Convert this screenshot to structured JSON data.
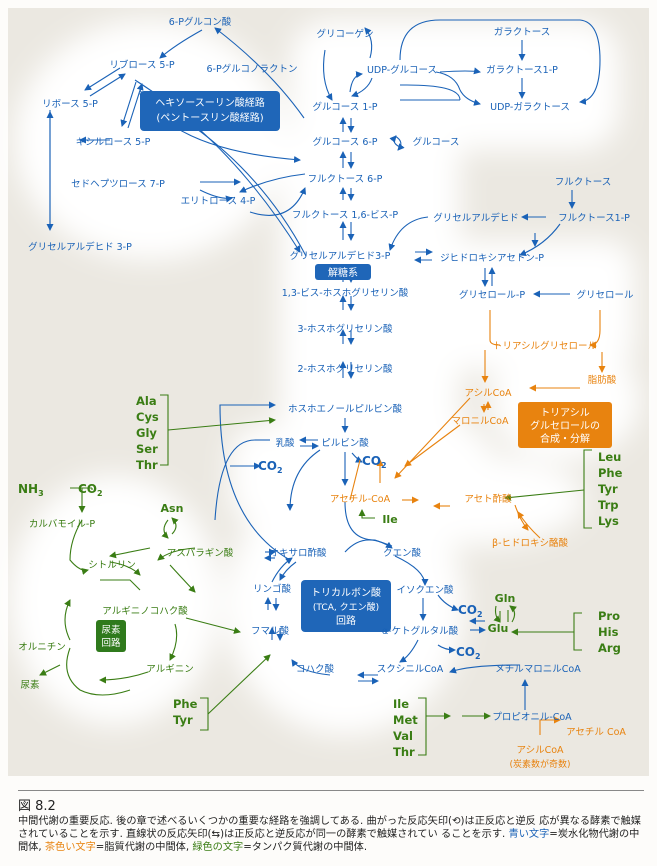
{
  "colors": {
    "carb": "#1a62b7",
    "lipid": "#e8830f",
    "protein": "#3a7d14",
    "ppp_box": "#1f66b8",
    "lipid_box": "#e8830f",
    "urea_box": "#2f7a1c",
    "background": "#eeebe4"
  },
  "carb": {
    "g6p_acid": "6-Pグルコン酸",
    "gluconolactone": "6-Pグルコノラクトン",
    "ribulose": "リブロース 5-P",
    "ribose": "リボース 5-P",
    "xylulose": "キシルロース 5-P",
    "sedoheptulose": "セドヘプツロース 7-P",
    "erythrose": "エリトロース 4-P",
    "gap3p_left": "グリセルアルデヒド 3-P",
    "glycogen": "グリコーゲン",
    "udp_glucose": "UDP-グルコース",
    "galactose": "ガラクトース",
    "galactose1p": "ガラクトース1-P",
    "udp_galactose": "UDP-ガラクトース",
    "glucose1p": "グルコース 1-P",
    "glucose6p": "グルコース 6-P",
    "glucose": "グルコース",
    "fructose6p": "フルクトース 6-P",
    "fructose16bp": "フルクトース 1,6-ビス-P",
    "fructose": "フルクトース",
    "fructose1p": "フルクトース1-P",
    "glyceraldehyde": "グリセルアルデヒド",
    "gap3p": "グリセルアルデヒド3-P",
    "dhap": "ジヒドロキシアセトン-P",
    "glycerol_p": "グリセロール-P",
    "glycerol": "グリセロール",
    "bpg13": "1,3-ビス-ホスホグリセリン酸",
    "pg3": "3-ホスホグリセリン酸",
    "pg2": "2-ホスホグリセリン酸",
    "pep": "ホスホエノールピルビン酸",
    "lactate": "乳酸",
    "pyruvate": "ピルビン酸",
    "co2": "CO",
    "co2_sub": "2",
    "oxaloacetate": "オキサロ酢酸",
    "citrate": "クエン酸",
    "malate": "リンゴ酸",
    "isocitrate": "イソクエン酸",
    "fumarate": "フマル酸",
    "akg": "α-ケトグルタル酸",
    "succinate": "コハク酸",
    "succinyl_coa": "スクシニルCoA",
    "methylmalonyl": "メチルマロニルCoA",
    "propionyl": "プロピオニル-CoA"
  },
  "lipid": {
    "triacylglycerol": "トリアシルグリセロール",
    "acyl_coa": "アシルCoA",
    "fatty_acid": "脂肪酸",
    "malonyl_coa": "マロニルCoA",
    "acetyl_coa": "アセチル-CoA",
    "acetoacetate": "アセト酢酸",
    "hydroxybutyrate": "β-ヒドロキシ酪酸",
    "acetyl_coa_small": "アセチル CoA",
    "acyl_coa_odd": "アシルCoA",
    "odd_note": "(炭素数が奇数)"
  },
  "protein": {
    "nh3": "NH",
    "nh3_sub": "3",
    "co2": "CO",
    "co2_sub": "2",
    "carbamoyl": "カルバモイル-P",
    "citrulline": "シトルリン",
    "asn": "Asn",
    "asparagine_acid": "アスパラギン酸",
    "argsucc": "アルギニノコハク酸",
    "ornithine": "オルニチン",
    "arginine": "アルギニン",
    "urea": "尿素",
    "ile_small": "Ile",
    "gln": "Gln",
    "glu": "Glu",
    "group_pyruvate": [
      "Ala",
      "Cys",
      "Gly",
      "Ser",
      "Thr"
    ],
    "group_acetyl": [
      "Leu",
      "Phe",
      "Tyr",
      "Trp",
      "Lys"
    ],
    "group_glu": [
      "Pro",
      "His",
      "Arg"
    ],
    "group_fum": [
      "Phe",
      "Tyr"
    ],
    "group_prop": [
      "Ile",
      "Met",
      "Val",
      "Thr"
    ]
  },
  "boxes": {
    "ppp": [
      "ヘキソースーリン酸経路",
      "(ペントースリン酸経路)"
    ],
    "glycolysis": "解糖系",
    "tca": [
      "トリカルボン酸",
      "(TCA, クエン酸)",
      "回路"
    ],
    "lipid": [
      "トリアシル",
      "グルセロールの",
      "合成・分解"
    ],
    "urea": [
      "尿素",
      "回路"
    ]
  },
  "caption": {
    "figure_number": "図 8.2",
    "line1_pre": "中間代謝の重要反応. 後の章で述べるいくつかの重要な経路を強調してある. 曲がった反応矢印(",
    "line1_post": ")は正反応と逆反",
    "line2": "応が異なる酵素で触媒されていることを示す. 直線状の反応矢印(",
    "line2_post": ")は正反応と逆反応が同一の酵素で触媒されてい",
    "line3_pre": "ることを示す. ",
    "blue_text": "青い文字",
    "blue_desc": "=炭水化物代謝の中間体, ",
    "orange_text": "茶色い文字",
    "orange_desc": "=脂質代謝の中間体, ",
    "green_text": "緑色の文字",
    "green_desc": "=タンパク質代謝の中間",
    "line4": "体."
  }
}
